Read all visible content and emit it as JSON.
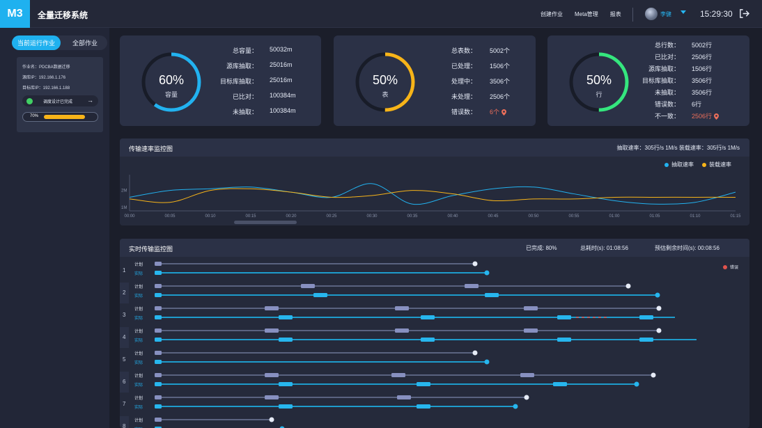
{
  "app": {
    "logo": "M3",
    "title": "全量迁移系统"
  },
  "topnav": {
    "items": [
      "创建作业",
      "Meta管理",
      "报表"
    ],
    "user": "李健",
    "time": "15:29:30"
  },
  "sidebar": {
    "tabs": [
      "当前运行作业",
      "全部作业"
    ],
    "job": {
      "name": "作业名：PDCBA数据迁移",
      "source_ip": "源库IP：192.166.1.176",
      "target_ip": "目标库IP：192.166.1.188",
      "status": "调度设计已完成",
      "progress_label": "70%",
      "progress": 0.7
    }
  },
  "cards": [
    {
      "pct": "60%",
      "sub": "容量",
      "value": 0.6,
      "color": "#22b2f0",
      "stats": [
        [
          "总容量：",
          "50032m"
        ],
        [
          "源库抽取：",
          "25016m"
        ],
        [
          "目标库抽取：",
          "25016m"
        ],
        [
          "已比对：",
          "100384m"
        ],
        [
          "未抽取：",
          "100384m"
        ]
      ]
    },
    {
      "pct": "50%",
      "sub": "表",
      "value": 0.5,
      "color": "#f7b419",
      "stats": [
        [
          "总表数：",
          "5002个"
        ],
        [
          "已处理：",
          "1506个"
        ],
        [
          "处理中：",
          "3506个"
        ],
        [
          "未处理：",
          "2506个"
        ],
        [
          "错误数：",
          "6个"
        ]
      ]
    },
    {
      "pct": "50%",
      "sub": "行",
      "value": 0.5,
      "color": "#35e67e",
      "stats": [
        [
          "总行数：",
          "5002行"
        ],
        [
          "已比对：",
          "2506行"
        ],
        [
          "源库抽取：",
          "1506行"
        ],
        [
          "目标库抽取：",
          "3506行"
        ],
        [
          "未抽取：",
          "3506行"
        ],
        [
          "错误数：",
          "6行"
        ],
        [
          "不一致：",
          "2506行"
        ]
      ]
    }
  ],
  "rate_panel": {
    "title": "传输速率监控图",
    "right": "抽取速率：305行/s 1M/s      装载速率：305行/s 1M/s",
    "legend": [
      "抽取速率",
      "装载速率"
    ],
    "colors": {
      "extract": "#22b2f0",
      "load": "#f7b419"
    }
  },
  "chart_data": {
    "type": "line",
    "x": [
      "00:00",
      "00:05",
      "00:10",
      "00:15",
      "00:20",
      "00:25",
      "00:30",
      "00:35",
      "00:40",
      "00:45",
      "00:50",
      "00:55",
      "01:00",
      "01:05",
      "01:10",
      "01:15"
    ],
    "y_ticks": [
      "2M",
      "1M"
    ],
    "series": [
      {
        "name": "抽取速率",
        "values": [
          1.6,
          2.0,
          2.1,
          2.2,
          1.9,
          1.6,
          2.4,
          1.2,
          1.7,
          2.1,
          2.2,
          1.8,
          1.4,
          1.2,
          1.3,
          1.9
        ]
      },
      {
        "name": "装载速率",
        "values": [
          1.5,
          1.3,
          2.0,
          2.1,
          1.9,
          1.6,
          1.7,
          2.0,
          1.8,
          1.4,
          1.5,
          1.5,
          1.6,
          1.6,
          1.6,
          1.6
        ]
      }
    ]
  },
  "gantt_panel": {
    "title": "实时传输监控图",
    "done": "已完成: 80%",
    "elapsed": "总耗时(s): 01:08:56",
    "remaining": "预估剩余时间(s): 00:08:56",
    "legend": "错误",
    "plan_label": "计划",
    "actual_label": "实际",
    "rows": [
      "1",
      "2",
      "3",
      "4",
      "5",
      "6",
      "7",
      "8"
    ]
  }
}
